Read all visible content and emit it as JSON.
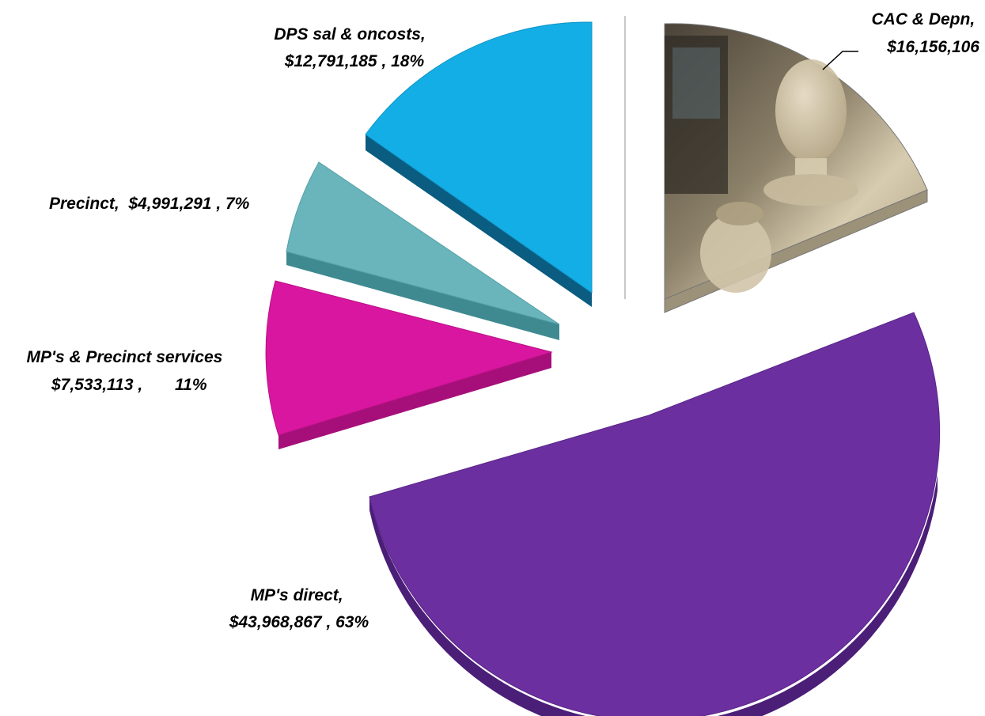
{
  "chart_data": {
    "type": "pie",
    "style": "3d-exploded",
    "title": "",
    "slices": [
      {
        "name": "CAC & Depn",
        "value": 16156106,
        "value_label": "$16,156,106",
        "percent_label": "",
        "color": "#b9ae95",
        "fill_description": "photo-texture",
        "label_lines": [
          "CAC & Depn,",
          "$16,156,106"
        ]
      },
      {
        "name": "MP's direct",
        "value": 43968867,
        "value_label": "$43,968,867",
        "percent_label": "63%",
        "color": "#6b2fa0",
        "label_lines": [
          "MP's direct,",
          "$43,968,867 , 63%"
        ]
      },
      {
        "name": "MP's & Precinct services",
        "value": 7533113,
        "value_label": "$7,533,113",
        "percent_label": "11%",
        "color": "#d9169f",
        "label_lines": [
          "MP's & Precinct services",
          "$7,533,113 ,       11%"
        ]
      },
      {
        "name": "Precinct",
        "value": 4991291,
        "value_label": "$4,991,291",
        "percent_label": "7%",
        "color": "#6ab5bc",
        "label_lines": [
          "Precinct,  $4,991,291 , 7%"
        ]
      },
      {
        "name": "DPS sal & oncosts",
        "value": 12791185,
        "value_label": "$12,791,185",
        "percent_label": "18%",
        "color": "#14aee6",
        "label_lines": [
          "DPS sal & oncosts,",
          "$12,791,185 , 18%"
        ]
      }
    ],
    "legend": "none"
  }
}
